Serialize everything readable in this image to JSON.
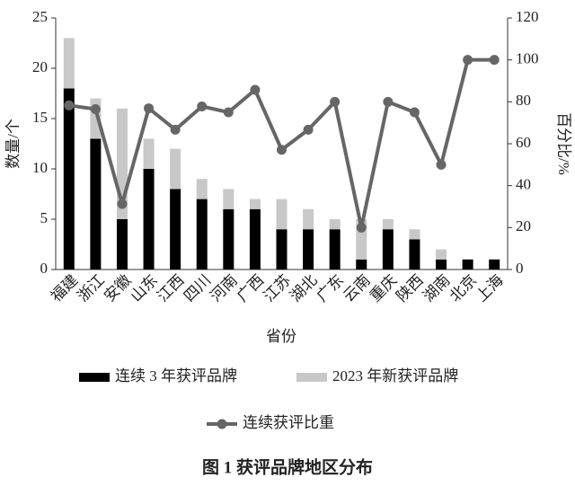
{
  "chart_data": {
    "type": "bar_line",
    "title": "图 1 获评品牌地区分布",
    "xlabel": "省份",
    "ylabel": "数量/个",
    "y2label": "百分比/%",
    "categories": [
      "福建",
      "浙江",
      "安徽",
      "山东",
      "江西",
      "四川",
      "河南",
      "广西",
      "江苏",
      "湖北",
      "广东",
      "云南",
      "重庆",
      "陕西",
      "湖南",
      "北京",
      "上海"
    ],
    "series": [
      {
        "name": "连续 3 年获评品牌",
        "color": "#000000",
        "type": "bar",
        "values": [
          18,
          13,
          5,
          10,
          8,
          7,
          6,
          6,
          4,
          4,
          4,
          1,
          4,
          3,
          1,
          1,
          1
        ]
      },
      {
        "name": "2023 年新获评品牌",
        "color": "#c8c8c8",
        "type": "bar",
        "values": [
          5,
          4,
          11,
          3,
          4,
          2,
          2,
          1,
          3,
          2,
          1,
          4,
          1,
          1,
          1,
          0,
          0
        ]
      },
      {
        "name": "连续获评比重",
        "color": "#666666",
        "type": "line",
        "axis": "y2",
        "values": [
          78.3,
          76.5,
          31.3,
          76.9,
          66.7,
          77.8,
          75,
          85.7,
          57.1,
          66.7,
          80,
          20,
          80,
          75,
          50,
          100,
          100
        ]
      }
    ],
    "stacked": true,
    "ylim": [
      0,
      25
    ],
    "yticks": [
      0,
      5,
      10,
      15,
      20,
      25
    ],
    "y2lim": [
      0,
      120
    ],
    "y2ticks": [
      0,
      20,
      40,
      60,
      80,
      100,
      120
    ],
    "legend": "bottom"
  }
}
